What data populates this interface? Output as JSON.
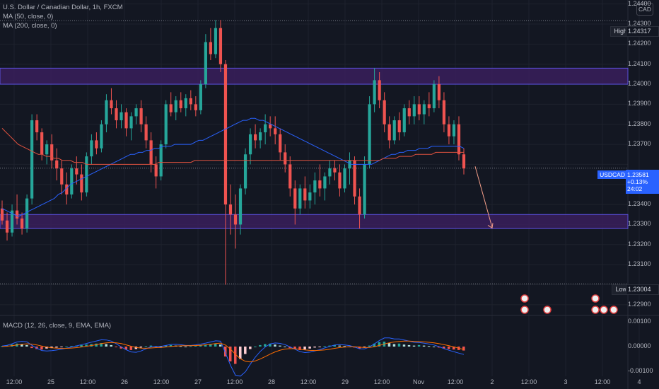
{
  "legend": {
    "title": "U.S. Dollar / Canadian Dollar, 1h, FXCM",
    "ma1": "MA (50, close, 0)",
    "ma2": "MA (200, close, 0)",
    "macd": "MACD (12, 26, close, 9, EMA, EMA)"
  },
  "currency_badge": "CAD",
  "price_axis": {
    "ticks": [
      "1.24400",
      "1.24300",
      "1.24200",
      "1.24100",
      "1.24000",
      "1.23900",
      "1.23800",
      "1.23700",
      "1.23400",
      "1.23300",
      "1.23200",
      "1.23100",
      "1.22900"
    ],
    "high_label": "High",
    "high_value": "1.24317",
    "low_label": "Low",
    "low_value": "1.23004",
    "symbol_tag": "USDCAD",
    "current_price": "1.23581",
    "current_change": "+0.13%",
    "countdown": "24:02"
  },
  "macd_axis": {
    "ticks": [
      "0.00100",
      "0.00000",
      "-0.00100"
    ]
  },
  "time_axis": {
    "labels": [
      "12:00",
      "25",
      "12:00",
      "26",
      "12:00",
      "27",
      "12:00",
      "28",
      "12:00",
      "29",
      "12:00",
      "Nov",
      "12:00",
      "2",
      "12:00",
      "3",
      "12:00",
      "4"
    ]
  },
  "colors": {
    "background": "#131722",
    "up": "#26a69a",
    "down": "#ef5350",
    "ma50": "#2962ff",
    "ma200": "#e0523f",
    "zone_fill": "#3a1e5c",
    "zone_border": "#5b52e0",
    "macd_line": "#2962ff",
    "signal_line": "#ff6d00"
  },
  "chart_data": {
    "type": "candlestick",
    "title": "U.S. Dollar / Canadian Dollar, 1h, FXCM",
    "ylim": [
      1.2285,
      1.2442
    ],
    "zones": [
      {
        "name": "resistance",
        "from": 1.24,
        "to": 1.2408
      },
      {
        "name": "support",
        "from": 1.2328,
        "to": 1.2335
      }
    ],
    "high": 1.24317,
    "low": 1.23004,
    "current": 1.23581,
    "projection": {
      "from": 1.2359,
      "to": 1.233
    },
    "macd_ylim": [
      -0.0012,
      0.0012
    ],
    "series": [
      {
        "name": "MA (50, close, 0)",
        "values": [
          1.2338,
          1.2337,
          1.2336,
          1.2335,
          1.2334,
          1.2335,
          1.2336,
          1.2337,
          1.2338,
          1.2339,
          1.234,
          1.2341,
          1.2342,
          1.2343,
          1.2345,
          1.2346,
          1.2348,
          1.235,
          1.2351,
          1.2352,
          1.2353,
          1.2354,
          1.2355,
          1.2356,
          1.2357,
          1.2358,
          1.2359,
          1.236,
          1.2361,
          1.2362,
          1.2363,
          1.2364,
          1.2365,
          1.2365,
          1.2366,
          1.2366,
          1.2367,
          1.2367,
          1.2368,
          1.2368,
          1.2369,
          1.2369,
          1.2369,
          1.237,
          1.237,
          1.237,
          1.237,
          1.237,
          1.2371,
          1.2372,
          1.2372,
          1.2373,
          1.2374,
          1.2375,
          1.2376,
          1.2377,
          1.2378,
          1.2379,
          1.238,
          1.2381,
          1.2382,
          1.2382,
          1.2383,
          1.2383,
          1.2382,
          1.2382,
          1.2381,
          1.238,
          1.2379,
          1.2378,
          1.2377,
          1.2376,
          1.2375,
          1.2374,
          1.2373,
          1.2372,
          1.2371,
          1.237,
          1.2369,
          1.2368,
          1.2367,
          1.2366,
          1.2365,
          1.2364,
          1.2363,
          1.2362,
          1.2361,
          1.236,
          1.236,
          1.236,
          1.236,
          1.236,
          1.236,
          1.2361,
          1.2362,
          1.2363,
          1.2364,
          1.2365,
          1.2365,
          1.2366,
          1.2366,
          1.2367,
          1.2367,
          1.2367,
          1.2368,
          1.2368,
          1.2368,
          1.2369,
          1.2369,
          1.2369,
          1.2369,
          1.2369,
          1.2369,
          1.2369,
          1.2369,
          1.2368
        ]
      },
      {
        "name": "MA (200, close, 0)",
        "values": [
          1.2378,
          1.2376,
          1.2374,
          1.2372,
          1.237,
          1.2369,
          1.2368,
          1.2367,
          1.2366,
          1.2365,
          1.2365,
          1.2364,
          1.2364,
          1.2363,
          1.2363,
          1.2362,
          1.2362,
          1.2362,
          1.2361,
          1.2361,
          1.2361,
          1.236,
          1.236,
          1.236,
          1.236,
          1.236,
          1.236,
          1.236,
          1.236,
          1.236,
          1.236,
          1.236,
          1.236,
          1.236,
          1.236,
          1.236,
          1.236,
          1.236,
          1.236,
          1.2361,
          1.2361,
          1.2361,
          1.2361,
          1.2361,
          1.2361,
          1.2361,
          1.2361,
          1.2361,
          1.2362,
          1.2362,
          1.2362,
          1.2362,
          1.2362,
          1.2362,
          1.2362,
          1.2362,
          1.2362,
          1.2362,
          1.2362,
          1.2362,
          1.2362,
          1.2362,
          1.2362,
          1.2362,
          1.2362,
          1.2362,
          1.2362,
          1.2362,
          1.2362,
          1.2362,
          1.2362,
          1.2362,
          1.2362,
          1.2362,
          1.2362,
          1.2362,
          1.2362,
          1.2362,
          1.2362,
          1.2362,
          1.2362,
          1.2362,
          1.2362,
          1.2362,
          1.2362,
          1.2362,
          1.2362,
          1.2362,
          1.2362,
          1.2362,
          1.2362,
          1.2362,
          1.2362,
          1.2362,
          1.2362,
          1.2363,
          1.2363,
          1.2363,
          1.2363,
          1.2364,
          1.2364,
          1.2364,
          1.2364,
          1.2365,
          1.2365,
          1.2365,
          1.2365,
          1.2365,
          1.2366,
          1.2366,
          1.2366,
          1.2366,
          1.2366,
          1.2366,
          1.2366,
          1.2366
        ]
      }
    ],
    "candles": [
      [
        1.2338,
        1.2342,
        1.233,
        1.2332
      ],
      [
        1.2332,
        1.2336,
        1.2322,
        1.2326
      ],
      [
        1.2326,
        1.234,
        1.2324,
        1.2337
      ],
      [
        1.2337,
        1.2345,
        1.233,
        1.2333
      ],
      [
        1.2333,
        1.2336,
        1.2325,
        1.2328
      ],
      [
        1.2328,
        1.2345,
        1.2326,
        1.2343
      ],
      [
        1.2343,
        1.2385,
        1.234,
        1.2382
      ],
      [
        1.2382,
        1.2385,
        1.2372,
        1.2376
      ],
      [
        1.2376,
        1.2378,
        1.2362,
        1.2365
      ],
      [
        1.2365,
        1.2372,
        1.236,
        1.237
      ],
      [
        1.237,
        1.2375,
        1.2358,
        1.2362
      ],
      [
        1.2362,
        1.2368,
        1.2352,
        1.2358
      ],
      [
        1.2358,
        1.2362,
        1.2345,
        1.235
      ],
      [
        1.235,
        1.2356,
        1.234,
        1.2345
      ],
      [
        1.2345,
        1.236,
        1.2343,
        1.2358
      ],
      [
        1.2358,
        1.2364,
        1.235,
        1.2355
      ],
      [
        1.2355,
        1.236,
        1.2342,
        1.2346
      ],
      [
        1.2346,
        1.2366,
        1.2344,
        1.2364
      ],
      [
        1.2364,
        1.2375,
        1.236,
        1.2372
      ],
      [
        1.2372,
        1.2376,
        1.2365,
        1.2368
      ],
      [
        1.2368,
        1.2382,
        1.2366,
        1.238
      ],
      [
        1.238,
        1.2395,
        1.2376,
        1.2392
      ],
      [
        1.2392,
        1.2398,
        1.2385,
        1.2388
      ],
      [
        1.2388,
        1.2392,
        1.2378,
        1.2382
      ],
      [
        1.2382,
        1.239,
        1.2378,
        1.2386
      ],
      [
        1.2386,
        1.2388,
        1.2374,
        1.2378
      ],
      [
        1.2378,
        1.2386,
        1.2372,
        1.2384
      ],
      [
        1.2384,
        1.239,
        1.238,
        1.2388
      ],
      [
        1.2388,
        1.2392,
        1.2376,
        1.238
      ],
      [
        1.238,
        1.2384,
        1.2368,
        1.2372
      ],
      [
        1.2372,
        1.2376,
        1.2356,
        1.236
      ],
      [
        1.236,
        1.2364,
        1.2348,
        1.2354
      ],
      [
        1.2354,
        1.2372,
        1.2352,
        1.237
      ],
      [
        1.237,
        1.2392,
        1.2368,
        1.239
      ],
      [
        1.239,
        1.2396,
        1.2384,
        1.2386
      ],
      [
        1.2386,
        1.2394,
        1.2382,
        1.2392
      ],
      [
        1.2392,
        1.2396,
        1.2386,
        1.2388
      ],
      [
        1.2388,
        1.2395,
        1.2384,
        1.2393
      ],
      [
        1.2393,
        1.2397,
        1.2387,
        1.239
      ],
      [
        1.239,
        1.2394,
        1.2384,
        1.2387
      ],
      [
        1.2387,
        1.2402,
        1.2385,
        1.24
      ],
      [
        1.24,
        1.2425,
        1.2398,
        1.2421
      ],
      [
        1.2421,
        1.2428,
        1.2412,
        1.2415
      ],
      [
        1.2415,
        1.2432,
        1.2413,
        1.2428
      ],
      [
        1.2428,
        1.2432,
        1.2406,
        1.241
      ],
      [
        1.241,
        1.2412,
        1.23,
        1.234
      ],
      [
        1.234,
        1.235,
        1.2325,
        1.2335
      ],
      [
        1.2335,
        1.2345,
        1.2318,
        1.233
      ],
      [
        1.233,
        1.235,
        1.2325,
        1.2348
      ],
      [
        1.2348,
        1.2368,
        1.2345,
        1.2365
      ],
      [
        1.2365,
        1.2378,
        1.236,
        1.2375
      ],
      [
        1.2375,
        1.238,
        1.2368,
        1.2372
      ],
      [
        1.2372,
        1.2378,
        1.2368,
        1.2376
      ],
      [
        1.2376,
        1.2385,
        1.237,
        1.238
      ],
      [
        1.238,
        1.2384,
        1.2374,
        1.2378
      ],
      [
        1.2378,
        1.2384,
        1.237,
        1.2375
      ],
      [
        1.2375,
        1.2378,
        1.2362,
        1.2366
      ],
      [
        1.2366,
        1.237,
        1.2356,
        1.236
      ],
      [
        1.236,
        1.2364,
        1.2344,
        1.2348
      ],
      [
        1.2348,
        1.2352,
        1.233,
        1.2338
      ],
      [
        1.2338,
        1.235,
        1.2335,
        1.2348
      ],
      [
        1.2348,
        1.2354,
        1.2338,
        1.2342
      ],
      [
        1.2342,
        1.235,
        1.2338,
        1.2346
      ],
      [
        1.2346,
        1.2356,
        1.234,
        1.2352
      ],
      [
        1.2352,
        1.236,
        1.2344,
        1.2348
      ],
      [
        1.2348,
        1.2356,
        1.2342,
        1.2354
      ],
      [
        1.2354,
        1.2362,
        1.235,
        1.2358
      ],
      [
        1.2358,
        1.2362,
        1.2352,
        1.2356
      ],
      [
        1.2356,
        1.236,
        1.2344,
        1.2348
      ],
      [
        1.2348,
        1.236,
        1.2346,
        1.2358
      ],
      [
        1.2358,
        1.2366,
        1.235,
        1.2362
      ],
      [
        1.2362,
        1.2364,
        1.234,
        1.2344
      ],
      [
        1.2344,
        1.2348,
        1.2328,
        1.2335
      ],
      [
        1.2335,
        1.2364,
        1.2333,
        1.236
      ],
      [
        1.236,
        1.2394,
        1.2358,
        1.239
      ],
      [
        1.239,
        1.2408,
        1.2386,
        1.2402
      ],
      [
        1.2402,
        1.2406,
        1.2388,
        1.2392
      ],
      [
        1.2392,
        1.2396,
        1.2376,
        1.238
      ],
      [
        1.238,
        1.2384,
        1.2368,
        1.2372
      ],
      [
        1.2372,
        1.2384,
        1.237,
        1.2382
      ],
      [
        1.2382,
        1.2386,
        1.2372,
        1.2376
      ],
      [
        1.2376,
        1.239,
        1.2374,
        1.2388
      ],
      [
        1.2388,
        1.2392,
        1.238,
        1.2384
      ],
      [
        1.2384,
        1.2394,
        1.238,
        1.239
      ],
      [
        1.239,
        1.2394,
        1.2382,
        1.2385
      ],
      [
        1.2385,
        1.2392,
        1.238,
        1.239
      ],
      [
        1.239,
        1.2396,
        1.2384,
        1.2388
      ],
      [
        1.2388,
        1.2402,
        1.2386,
        1.24
      ],
      [
        1.24,
        1.2404,
        1.2388,
        1.2392
      ],
      [
        1.2392,
        1.2396,
        1.2376,
        1.238
      ],
      [
        1.238,
        1.2384,
        1.237,
        1.2374
      ],
      [
        1.2374,
        1.2382,
        1.237,
        1.238
      ],
      [
        1.238,
        1.2384,
        1.2362,
        1.2365
      ],
      [
        1.2365,
        1.2368,
        1.2355,
        1.2358
      ]
    ],
    "macd": [
      2e-05,
      4e-05,
      8e-05,
      0.00012,
      0.0001,
      6e-05,
      -6e-05,
      -0.0001,
      -0.00012,
      -8e-05,
      -6e-05,
      -4e-05,
      -2e-05,
      0.0,
      2e-05,
      4e-05,
      6e-05,
      8e-05,
      0.0001,
      0.00012,
      0.00014,
      0.0001,
      6e-05,
      -2e-05,
      -8e-05,
      -0.00012,
      -0.00014,
      -0.0001,
      -4e-05,
      2e-05,
      4e-05,
      2e-05,
      0.0,
      4e-05,
      6e-05,
      4e-05,
      2e-05,
      0.0,
      2e-05,
      4e-05,
      6e-05,
      8e-05,
      0.0001,
      0.00012,
      8e-05,
      -0.0004,
      -0.0006,
      -0.0007,
      -0.0005,
      -0.0003,
      -0.0001,
      0.0,
      6e-05,
      0.0001,
      0.00012,
      8e-05,
      4e-05,
      0.0,
      -6e-05,
      -0.0001,
      -0.00014,
      -0.00012,
      -8e-05,
      -4e-05,
      -2e-05,
      2e-05,
      4e-05,
      6e-05,
      4e-05,
      2e-05,
      0.0,
      -4e-05,
      -8e-05,
      -4e-05,
      4e-05,
      0.00012,
      0.00018,
      0.0002,
      0.00014,
      0.0001,
      0.00012,
      8e-05,
      6e-05,
      4e-05,
      6e-05,
      4e-05,
      2e-05,
      0.0,
      -4e-05,
      -8e-05,
      -0.0001,
      -0.00012,
      -0.00014,
      -0.00016
    ]
  }
}
